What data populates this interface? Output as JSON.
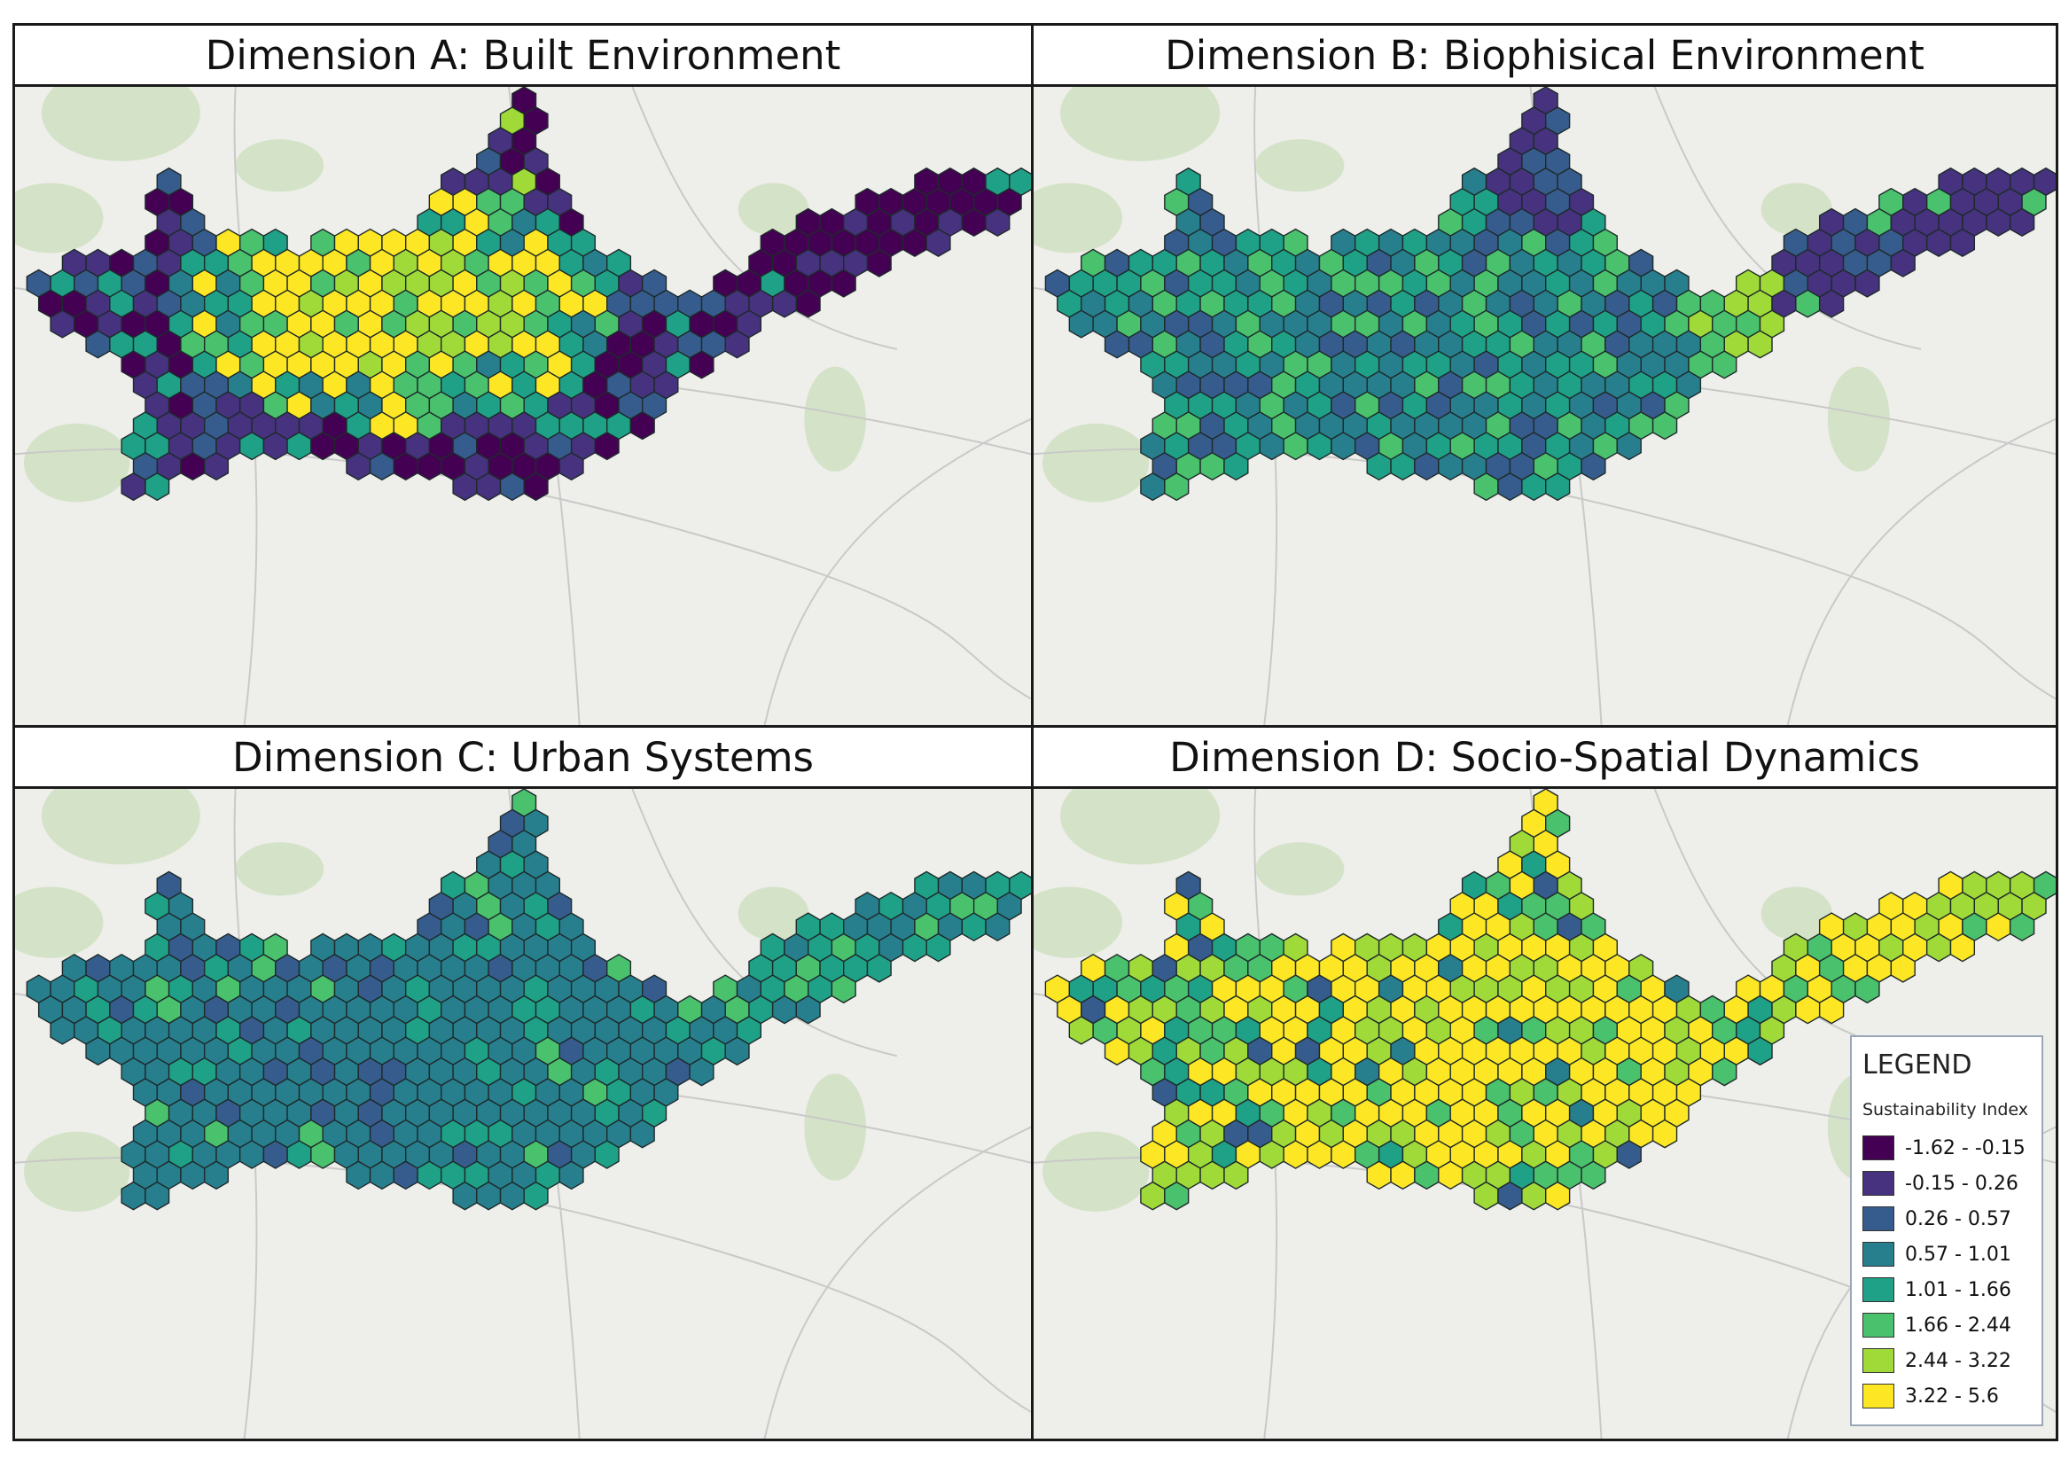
{
  "panels": [
    {
      "id": "a",
      "title": "Dimension A: Built Environment"
    },
    {
      "id": "b",
      "title": "Dimension B: Biophisical Environment"
    },
    {
      "id": "c",
      "title": "Dimension C: Urban Systems"
    },
    {
      "id": "d",
      "title": "Dimension D: Socio-Spatial Dynamics"
    }
  ],
  "legend": {
    "title": "LEGEND",
    "subtitle": "Sustainability Index",
    "classes": [
      {
        "label": "-1.62 - -0.15",
        "color": "#440154"
      },
      {
        "label": "-0.15 - 0.26",
        "color": "#46327e"
      },
      {
        "label": "0.26 - 0.57",
        "color": "#365c8d"
      },
      {
        "label": "0.57 - 1.01",
        "color": "#277f8e"
      },
      {
        "label": "1.01 - 1.66",
        "color": "#1fa187"
      },
      {
        "label": "1.66 - 2.44",
        "color": "#4ac16d"
      },
      {
        "label": "2.44 - 3.22",
        "color": "#a0da39"
      },
      {
        "label": "3.22 - 5.6",
        "color": "#fde725"
      }
    ]
  },
  "basemap": {
    "land": "#eeeeea",
    "green": "#cfe0c1",
    "roads": "#ffffff",
    "minor_roads": "#c9c9c9"
  },
  "hex_stroke": "#1e2a2a"
}
